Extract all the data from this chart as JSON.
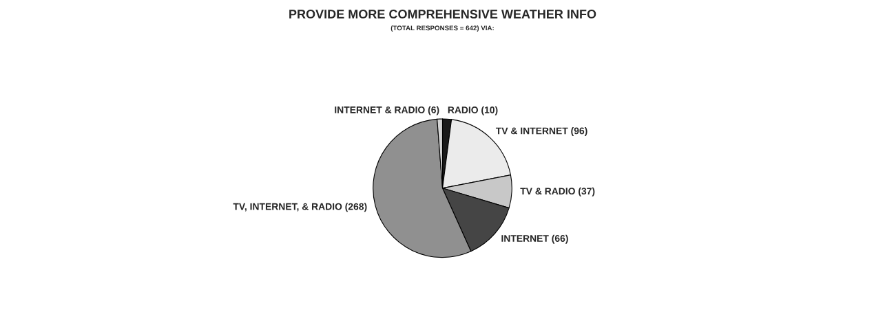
{
  "chart_data": {
    "type": "pie",
    "title": "PROVIDE MORE COMPREHENSIVE WEATHER INFO",
    "subtitle": "(TOTAL RESPONSES = 642) VIA:",
    "categories": [
      "RADIO (10)",
      "TV & INTERNET (96)",
      "TV & RADIO (37)",
      "INTERNET (66)",
      "TV, INTERNET, & RADIO (268)",
      "INTERNET & RADIO (6)"
    ],
    "values": [
      10,
      96,
      37,
      66,
      268,
      6
    ],
    "colors": [
      "#1a1a1a",
      "#ebebeb",
      "#c8c8c8",
      "#454545",
      "#909090",
      "#d4d4d4"
    ]
  }
}
